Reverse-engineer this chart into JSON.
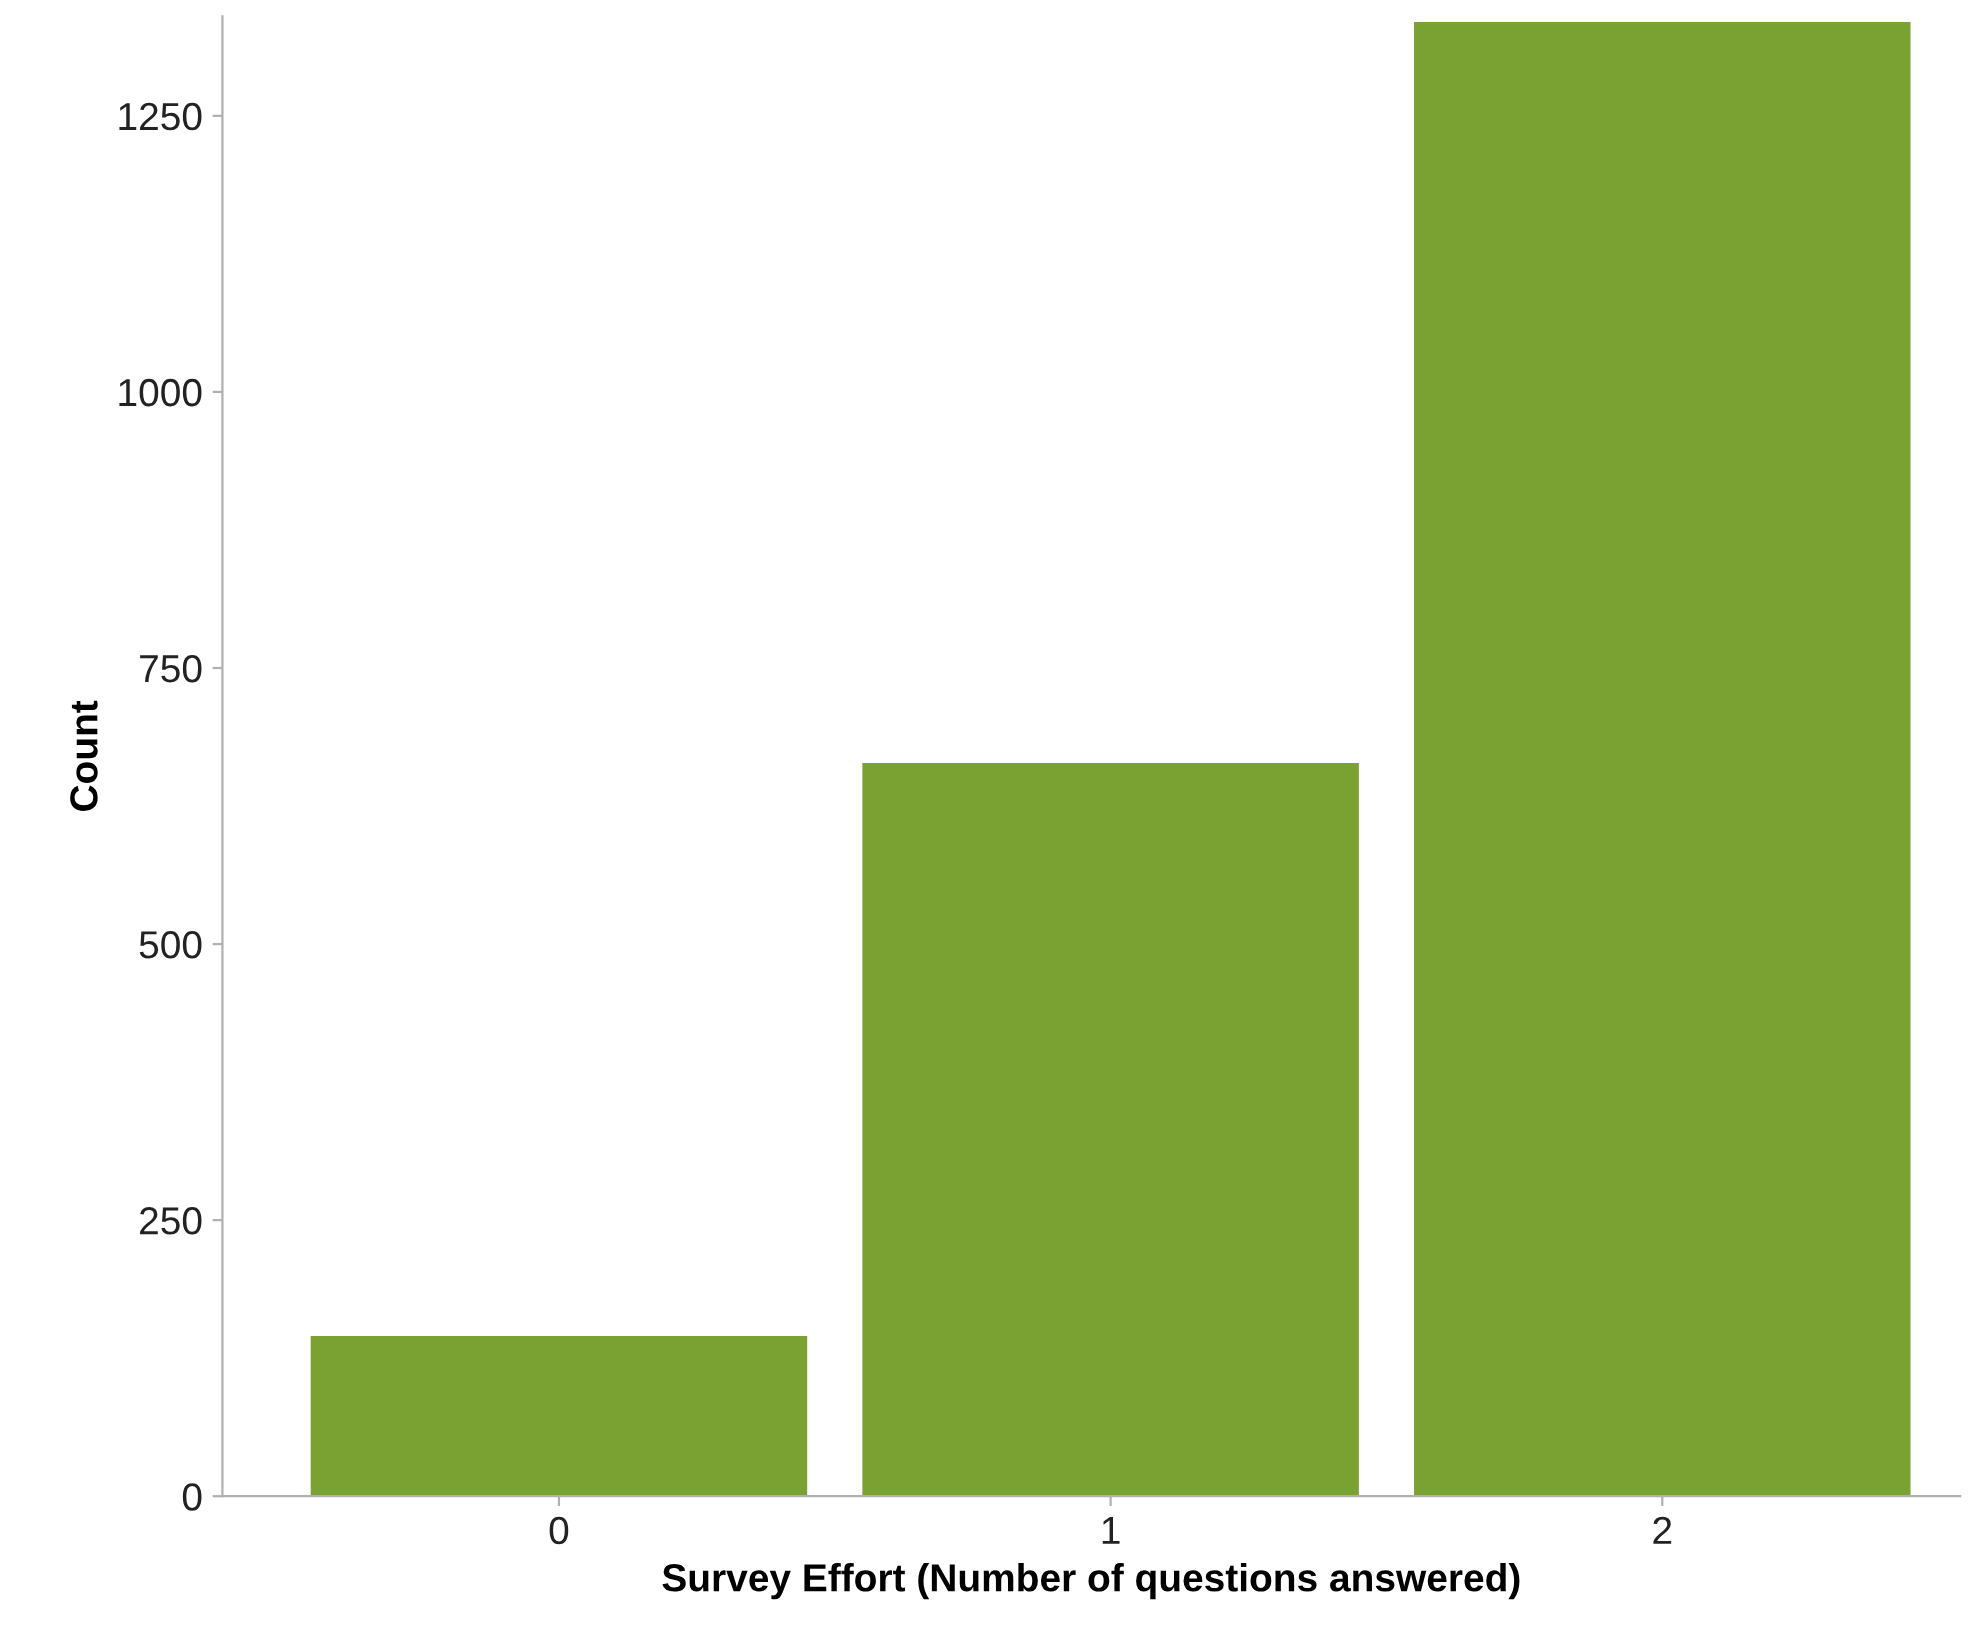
{
  "chart_data": {
    "type": "bar",
    "xlabel": "Survey Effort (Number of questions answered)",
    "ylabel": "Count",
    "categories": [
      "0",
      "1",
      "2"
    ],
    "values": [
      145,
      664,
      1335
    ],
    "color": "#7aa232",
    "ylim": [
      0,
      1340
    ],
    "yticks": [
      0,
      250,
      500,
      750,
      1000,
      1250
    ],
    "grid": false
  }
}
